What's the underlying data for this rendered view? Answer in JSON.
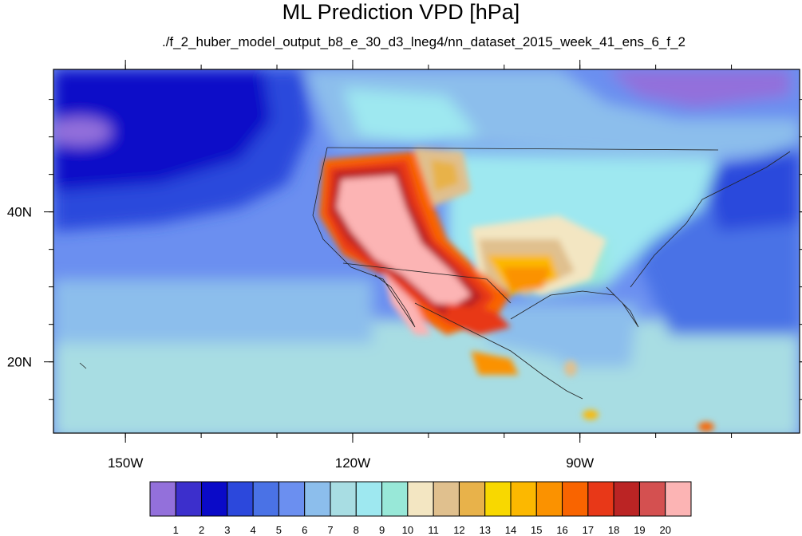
{
  "title": "ML Prediction VPD [hPa]",
  "subtitle": "./f_2_huber_model_output_b8_e_30_d3_lneg4/nn_dataset_2015_week_41_ens_6_f_2",
  "map": {
    "x_ticks": [
      {
        "lon": -150,
        "label": "150W"
      },
      {
        "lon": -120,
        "label": "120W"
      },
      {
        "lon": -90,
        "label": "90W"
      }
    ],
    "y_ticks": [
      {
        "lat": 40,
        "label": "40N"
      },
      {
        "lat": 20,
        "label": "20N"
      }
    ],
    "lon_range": [
      -159.5,
      -61
    ],
    "lat_range": [
      10.5,
      59
    ]
  },
  "colorbar": {
    "labels": [
      "1",
      "2",
      "3",
      "4",
      "5",
      "6",
      "7",
      "8",
      "9",
      "10",
      "11",
      "12",
      "13",
      "14",
      "15",
      "16",
      "17",
      "18",
      "19",
      "20"
    ],
    "colors": [
      "#9370db",
      "#3c2fcc",
      "#0a0ac8",
      "#2c48dc",
      "#4a72e6",
      "#6b8ff0",
      "#8cbeec",
      "#a8dde3",
      "#9ee8f0",
      "#98e8d8",
      "#f3e6c2",
      "#e0c08e",
      "#e8b24a",
      "#f8d800",
      "#fcb800",
      "#fb9200",
      "#f96400",
      "#e83818",
      "#bb2424",
      "#d45050",
      "#fcb4b4"
    ]
  }
}
